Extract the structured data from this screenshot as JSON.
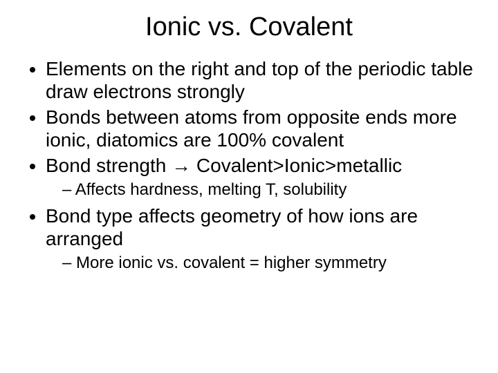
{
  "slide": {
    "title": "Ionic vs. Covalent",
    "bullets": [
      {
        "text": "Elements on the right and top of the periodic table draw electrons strongly"
      },
      {
        "text": "Bonds between atoms from opposite ends more ionic, diatomics are 100% covalent"
      },
      {
        "text": "Bond strength → Covalent>Ionic>metallic",
        "sub": [
          "Affects hardness, melting T, solubility"
        ]
      },
      {
        "text": "Bond type affects geometry of how ions are arranged",
        "sub": [
          "More ionic vs. covalent = higher symmetry"
        ]
      }
    ]
  },
  "style": {
    "background_color": "#ffffff",
    "text_color": "#000000",
    "title_fontsize": 38,
    "body_fontsize": 28,
    "sub_fontsize": 24,
    "font_family": "Arial"
  }
}
